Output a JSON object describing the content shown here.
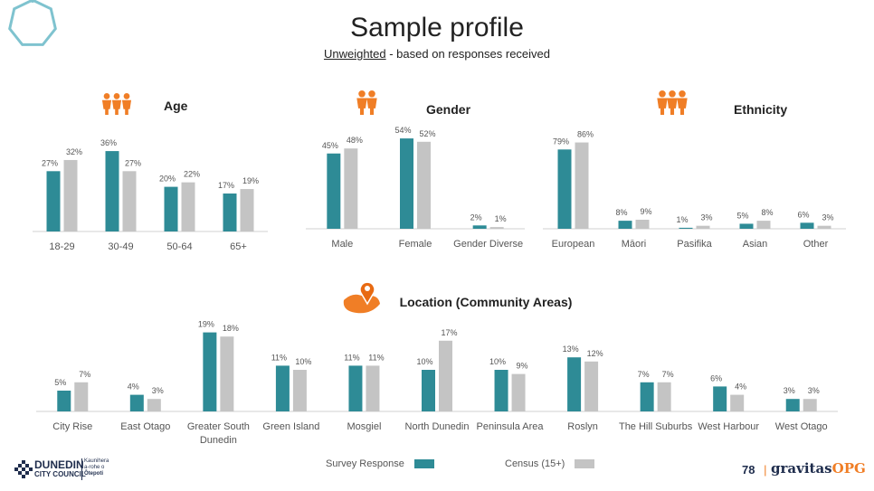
{
  "header": {
    "title": "Sample profile",
    "subtitle_underlined": "Unweighted",
    "subtitle_rest": " - based on responses received"
  },
  "colors": {
    "survey": "#2e8b96",
    "census": "#c4c4c4",
    "icon_orange": "#f07e26",
    "deco_teal": "#7fc3cf"
  },
  "legend": {
    "survey_label": "Survey Response",
    "census_label": "Census (15+)"
  },
  "footer": {
    "page_number": "78",
    "separator": "|",
    "brand_main": "gravitas",
    "brand_accent": "OPG",
    "council_name_1": "DUNEDIN",
    "council_name_2": "CITY COUNCIL",
    "council_maori_1": "Kaunihera",
    "council_maori_2": "a-rohe o",
    "council_maori_3": "Ōtepoti"
  },
  "chart_data": [
    {
      "type": "bar",
      "title": "Age",
      "icon": "people-icon",
      "categories": [
        "18-29",
        "30-49",
        "50-64",
        "65+"
      ],
      "series": [
        {
          "name": "Survey Response",
          "values": [
            27,
            36,
            20,
            17
          ]
        },
        {
          "name": "Census (15+)",
          "values": [
            32,
            27,
            22,
            19
          ]
        }
      ]
    },
    {
      "type": "bar",
      "title": "Gender",
      "icon": "people-icon",
      "categories": [
        "Male",
        "Female",
        "Gender Diverse"
      ],
      "series": [
        {
          "name": "Survey Response",
          "values": [
            45,
            54,
            2
          ]
        },
        {
          "name": "Census (15+)",
          "values": [
            48,
            52,
            1
          ]
        }
      ]
    },
    {
      "type": "bar",
      "title": "Ethnicity",
      "icon": "people-icon",
      "categories": [
        "European",
        "Māori",
        "Pasifika",
        "Asian",
        "Other"
      ],
      "series": [
        {
          "name": "Survey Response",
          "values": [
            79,
            8,
            1,
            5,
            6
          ]
        },
        {
          "name": "Census (15+)",
          "values": [
            86,
            9,
            3,
            8,
            3
          ]
        }
      ]
    },
    {
      "type": "bar",
      "title": "Location (Community Areas)",
      "icon": "map-pin-icon",
      "categories": [
        "City Rise",
        "East Otago",
        "Greater South Dunedin",
        "Green Island",
        "Mosgiel",
        "North Dunedin",
        "Peninsula Area",
        "Roslyn",
        "The Hill Suburbs",
        "West Harbour",
        "West Otago"
      ],
      "series": [
        {
          "name": "Survey Response",
          "values": [
            5,
            4,
            19,
            11,
            11,
            10,
            10,
            13,
            7,
            6,
            3
          ]
        },
        {
          "name": "Census (15+)",
          "values": [
            7,
            3,
            18,
            10,
            11,
            17,
            9,
            12,
            7,
            4,
            3
          ]
        }
      ]
    }
  ]
}
